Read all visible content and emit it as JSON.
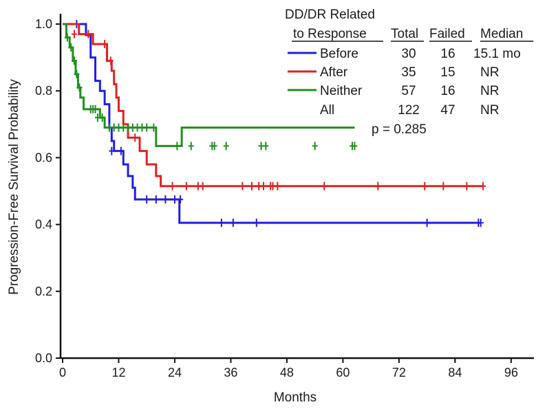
{
  "chart_data": {
    "type": "line",
    "subtype": "kaplan-meier",
    "xlabel": "Months",
    "ylabel": "Progression-Free Survival Probability",
    "xlim": [
      0,
      100
    ],
    "ylim": [
      0,
      1.04
    ],
    "xticks": [
      0,
      12,
      24,
      36,
      48,
      60,
      72,
      84,
      96
    ],
    "xtick_labels": [
      "0",
      "12",
      "24",
      "36",
      "48",
      "60",
      "72",
      "84",
      "96"
    ],
    "yticks": [
      0,
      0.2,
      0.4,
      0.6,
      0.8,
      1.0
    ],
    "ytick_labels": [
      "0.0",
      "0.2",
      "0.4",
      "0.6",
      "0.8",
      "1.0"
    ],
    "grid": false,
    "legend": {
      "position": "top-right",
      "heading_line1": "DD/DR Related",
      "heading_line2": "to Response",
      "col_total": "Total",
      "col_failed": "Failed",
      "col_median": "Median",
      "rows": [
        {
          "label": "Before",
          "total": "30",
          "failed": "16",
          "median": "15.1 mo",
          "color": "#1f1fe0"
        },
        {
          "label": "After",
          "total": "35",
          "failed": "15",
          "median": "NR",
          "color": "#e02020"
        },
        {
          "label": "Neither",
          "total": "57",
          "failed": "16",
          "median": "NR",
          "color": "#1f8f1f"
        },
        {
          "label": "All",
          "total": "122",
          "failed": "47",
          "median": "NR"
        }
      ],
      "pvalue": "p = 0.285"
    },
    "series": [
      {
        "name": "Before",
        "color": "#1f1fe0",
        "x_end": 89.5,
        "steps": [
          [
            0,
            1.0
          ],
          [
            5.0,
            0.967
          ],
          [
            6.0,
            0.9
          ],
          [
            7.0,
            0.83
          ],
          [
            8.0,
            0.8
          ],
          [
            9.0,
            0.76
          ],
          [
            10.0,
            0.69
          ],
          [
            10.5,
            0.65
          ],
          [
            11.0,
            0.62
          ],
          [
            13.0,
            0.58
          ],
          [
            14.0,
            0.545
          ],
          [
            15.0,
            0.51
          ],
          [
            15.5,
            0.475
          ],
          [
            25.0,
            0.405
          ]
        ],
        "censors": [
          [
            3.0,
            1.0
          ],
          [
            10.5,
            0.62
          ],
          [
            12.5,
            0.62
          ],
          [
            18.0,
            0.475
          ],
          [
            20.0,
            0.475
          ],
          [
            22.0,
            0.475
          ],
          [
            24.0,
            0.475
          ],
          [
            25.2,
            0.475
          ],
          [
            34.0,
            0.405
          ],
          [
            36.5,
            0.405
          ],
          [
            41.5,
            0.405
          ],
          [
            78.0,
            0.405
          ],
          [
            89.0,
            0.405
          ],
          [
            89.5,
            0.405
          ]
        ]
      },
      {
        "name": "After",
        "color": "#e02020",
        "x_end": 90.0,
        "steps": [
          [
            0,
            1.0
          ],
          [
            3.5,
            0.97
          ],
          [
            6.5,
            0.94
          ],
          [
            9.5,
            0.89
          ],
          [
            10.5,
            0.86
          ],
          [
            11.0,
            0.82
          ],
          [
            11.5,
            0.78
          ],
          [
            12.0,
            0.74
          ],
          [
            13.0,
            0.7
          ],
          [
            14.0,
            0.66
          ],
          [
            16.5,
            0.62
          ],
          [
            18.0,
            0.58
          ],
          [
            20.0,
            0.545
          ],
          [
            21.0,
            0.515
          ]
        ],
        "censors": [
          [
            2.5,
            0.97
          ],
          [
            5.5,
            0.97
          ],
          [
            9.0,
            0.94
          ],
          [
            10.3,
            0.89
          ],
          [
            15.5,
            0.66
          ],
          [
            23.5,
            0.515
          ],
          [
            26.5,
            0.515
          ],
          [
            29.0,
            0.515
          ],
          [
            30.0,
            0.515
          ],
          [
            38.5,
            0.515
          ],
          [
            40.5,
            0.515
          ],
          [
            42.0,
            0.515
          ],
          [
            43.0,
            0.515
          ],
          [
            44.5,
            0.515
          ],
          [
            45.0,
            0.515
          ],
          [
            46.0,
            0.515
          ],
          [
            56.0,
            0.515
          ],
          [
            67.5,
            0.515
          ],
          [
            77.5,
            0.515
          ],
          [
            81.5,
            0.515
          ],
          [
            86.5,
            0.515
          ],
          [
            90.0,
            0.515
          ]
        ]
      },
      {
        "name": "Neither",
        "color": "#1f8f1f",
        "x_end": 62.5,
        "steps": [
          [
            0,
            1.0
          ],
          [
            0.8,
            0.96
          ],
          [
            1.5,
            0.93
          ],
          [
            2.2,
            0.89
          ],
          [
            2.8,
            0.85
          ],
          [
            3.3,
            0.81
          ],
          [
            3.8,
            0.78
          ],
          [
            4.5,
            0.745
          ],
          [
            8.0,
            0.72
          ],
          [
            9.0,
            0.69
          ],
          [
            25.5,
            0.69
          ],
          [
            20.0,
            0.635
          ]
        ],
        "censors": [
          [
            1.0,
            0.96
          ],
          [
            1.8,
            0.93
          ],
          [
            2.5,
            0.89
          ],
          [
            3.0,
            0.85
          ],
          [
            3.6,
            0.81
          ],
          [
            6.0,
            0.745
          ],
          [
            6.5,
            0.745
          ],
          [
            7.0,
            0.745
          ],
          [
            7.5,
            0.72
          ],
          [
            8.5,
            0.72
          ],
          [
            10.0,
            0.69
          ],
          [
            11.0,
            0.69
          ],
          [
            12.0,
            0.69
          ],
          [
            13.0,
            0.69
          ],
          [
            14.0,
            0.69
          ],
          [
            15.0,
            0.69
          ],
          [
            16.0,
            0.69
          ],
          [
            17.0,
            0.69
          ],
          [
            18.0,
            0.69
          ],
          [
            19.5,
            0.69
          ],
          [
            24.5,
            0.635
          ],
          [
            27.5,
            0.635
          ],
          [
            32.0,
            0.635
          ],
          [
            32.5,
            0.635
          ],
          [
            35.0,
            0.635
          ],
          [
            42.5,
            0.635
          ],
          [
            43.5,
            0.635
          ],
          [
            54.0,
            0.635
          ],
          [
            62.0,
            0.635
          ],
          [
            62.5,
            0.635
          ]
        ]
      }
    ]
  }
}
